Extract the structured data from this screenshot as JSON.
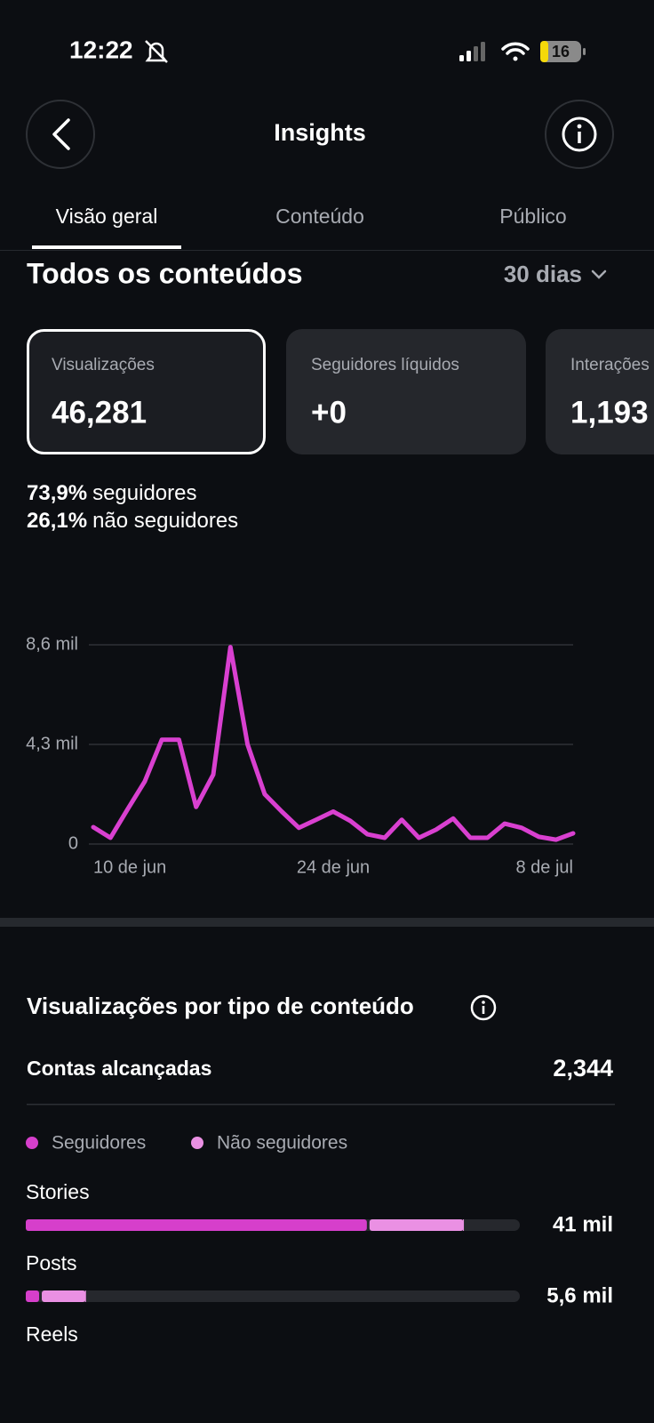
{
  "status_bar": {
    "time": "12:22",
    "battery": "16"
  },
  "header": {
    "title": "Insights"
  },
  "tabs": [
    "Visão geral",
    "Conteúdo",
    "Público"
  ],
  "section": {
    "title": "Todos os conteúdos",
    "period": "30 dias"
  },
  "cards": [
    {
      "label": "Visualizações",
      "value": "46,281"
    },
    {
      "label": "Seguidores líquidos",
      "value": "+0"
    },
    {
      "label": "Interações",
      "value": "1,193"
    }
  ],
  "audience_split": [
    {
      "percent": "73,9%",
      "label": "seguidores"
    },
    {
      "percent": "26,1%",
      "label": "não seguidores"
    }
  ],
  "chart_data": [
    {
      "type": "line",
      "categories": [
        "10 de jun",
        null,
        null,
        null,
        null,
        null,
        null,
        null,
        null,
        null,
        null,
        null,
        null,
        null,
        "24 de jun",
        null,
        null,
        null,
        null,
        null,
        null,
        null,
        null,
        null,
        null,
        null,
        null,
        null,
        "8 de jul"
      ],
      "values": [
        730,
        270,
        1500,
        2700,
        4500,
        4500,
        1600,
        3000,
        8500,
        4300,
        2150,
        1400,
        700,
        1050,
        1400,
        1000,
        420,
        270,
        1050,
        270,
        620,
        1100,
        270,
        270,
        880,
        700,
        310,
        190,
        460
      ],
      "color": "#d940d0",
      "ylim": [
        0,
        8600
      ],
      "yticks": [
        {
          "value": 0,
          "label": "0"
        },
        {
          "value": 4300,
          "label": "4,3 mil"
        },
        {
          "value": 8600,
          "label": "8,6 mil"
        }
      ],
      "grid": true
    },
    {
      "type": "bar",
      "title": "Visualizações por tipo de conteúdo",
      "reach_label": "Contas alcançadas",
      "reach_value": "2,344",
      "categories": [
        "Stories",
        "Posts",
        "Reels"
      ],
      "series": [
        {
          "name": "Seguidores",
          "color": "#d63fcb",
          "values": [
            32200,
            1500,
            null
          ]
        },
        {
          "name": "Não seguidores",
          "color": "#ea90e3",
          "values": [
            8800,
            4100,
            null
          ]
        }
      ],
      "totals": [
        41000,
        5600,
        null
      ],
      "total_labels": [
        "41 mil",
        "5,6 mil",
        null
      ],
      "xlim": [
        0,
        46281
      ]
    }
  ]
}
